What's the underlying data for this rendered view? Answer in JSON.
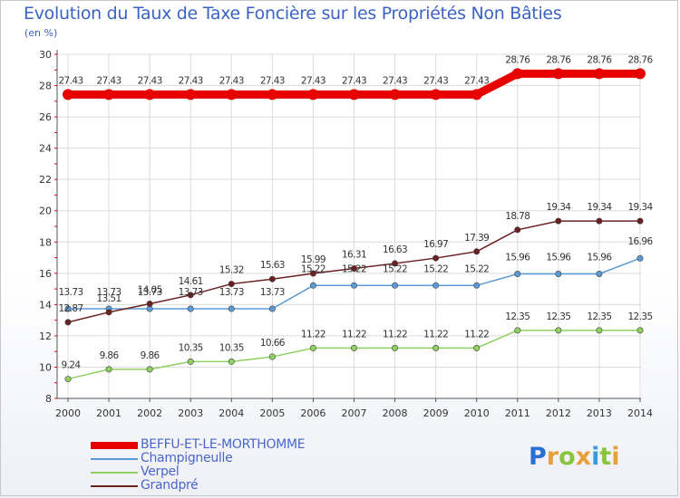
{
  "title": "Evolution du Taux de Taxe Foncière sur les Propriétés Non Bâties",
  "subtitle": "(en %)",
  "logo": {
    "letters": [
      "P",
      "r",
      "o",
      "x",
      "i",
      "t",
      "i"
    ],
    "colors": [
      "#2b6fd6",
      "#e8a13a",
      "#8bc53f",
      "#e8a13a",
      "#3b9ad9",
      "#8bc53f",
      "#e8a13a"
    ]
  },
  "colors": {
    "title": "#3b63c4",
    "grid": "#dcdcdc",
    "axis": "#555555"
  },
  "chart_data": {
    "type": "line",
    "x": [
      "2000",
      "2001",
      "2002",
      "2003",
      "2004",
      "2005",
      "2006",
      "2007",
      "2008",
      "2009",
      "2010",
      "2011",
      "2012",
      "2013",
      "2014"
    ],
    "ylim": [
      8,
      30
    ],
    "yticks": [
      "8",
      "10",
      "12",
      "14",
      "16",
      "18",
      "20",
      "22",
      "24",
      "26",
      "28",
      "30"
    ],
    "grid": true,
    "legend_position": "bottom-left",
    "series": [
      {
        "name": "BEFFU-ET-LE-MORTHOMME",
        "color": "#e60000",
        "values": [
          27.43,
          27.43,
          27.43,
          27.43,
          27.43,
          27.43,
          27.43,
          27.43,
          27.43,
          27.43,
          27.43,
          28.76,
          28.76,
          28.76,
          28.76
        ],
        "labels": [
          "27.43",
          "27.43",
          "27.43",
          "27.43",
          "27.43",
          "27.43",
          "27.43",
          "27.43",
          "27.43",
          "27.43",
          "27.43",
          "28.76",
          "28.76",
          "28.76",
          "28.76"
        ]
      },
      {
        "name": "Champigneulle",
        "color": "#5b9bd5",
        "values": [
          13.73,
          13.73,
          13.73,
          13.73,
          13.73,
          13.73,
          15.22,
          15.22,
          15.22,
          15.22,
          15.22,
          15.96,
          15.96,
          15.96,
          16.96
        ],
        "labels": [
          "13.73",
          "13.73",
          "13.73",
          "13.73",
          "13.73",
          "13.73",
          "15.22",
          "15.22",
          "15.22",
          "15.22",
          "15.22",
          "15.96",
          "15.96",
          "15.96",
          "16.96"
        ]
      },
      {
        "name": "Verpel",
        "color": "#90d060",
        "values": [
          9.24,
          9.86,
          9.86,
          10.35,
          10.35,
          10.66,
          11.22,
          11.22,
          11.22,
          11.22,
          11.22,
          12.35,
          12.35,
          12.35,
          12.35
        ],
        "labels": [
          "9.24",
          "9.86",
          "9.86",
          "10.35",
          "10.35",
          "10.66",
          "11.22",
          "11.22",
          "11.22",
          "11.22",
          "11.22",
          "12.35",
          "12.35",
          "12.35",
          "12.35"
        ]
      },
      {
        "name": "Grandpré",
        "color": "#6b2020",
        "values": [
          12.87,
          13.51,
          14.05,
          14.61,
          15.32,
          15.63,
          15.99,
          16.31,
          16.63,
          16.97,
          17.39,
          18.78,
          19.34,
          19.34,
          19.34
        ],
        "labels": [
          "12.87",
          "13.51",
          "14.05",
          "14.61",
          "15.32",
          "15.63",
          "15.99",
          "16.31",
          "16.63",
          "16.97",
          "17.39",
          "18.78",
          "19.34",
          "19.34",
          "19.34"
        ]
      }
    ]
  }
}
